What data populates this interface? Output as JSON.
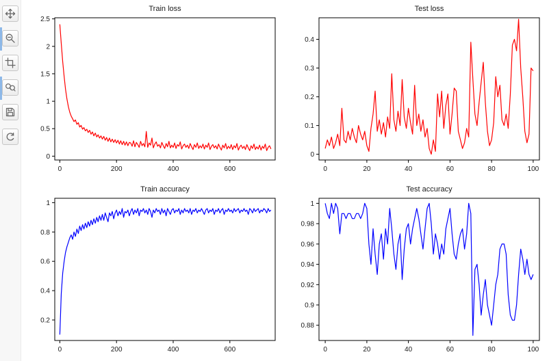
{
  "toolbar": {
    "accent_color": "#8db8e8",
    "buttons": [
      {
        "name": "pan",
        "icon": "pan-icon"
      },
      {
        "name": "zoom",
        "icon": "zoom-icon"
      },
      {
        "name": "zoom-to-rect",
        "icon": "crop-icon"
      },
      {
        "name": "inspect",
        "icon": "loupe-pair-icon"
      },
      {
        "name": "save",
        "icon": "save-icon"
      },
      {
        "name": "refresh",
        "icon": "refresh-icon"
      }
    ]
  },
  "chart_data": [
    {
      "type": "line",
      "title": "Train loss",
      "color": "#ff0000",
      "legend": "off",
      "grid": "off",
      "x0": 0,
      "dx": 5,
      "xlim": [
        -18,
        760
      ],
      "ylim": [
        -0.07,
        2.52
      ],
      "xticks": [
        0,
        200,
        400,
        600
      ],
      "xtick_labels": [
        "0",
        "200",
        "400",
        "600"
      ],
      "yticks": [
        0,
        0.5,
        1,
        1.5,
        2,
        2.5
      ],
      "ytick_labels": [
        "0",
        "0.5",
        "1",
        "1.5",
        "2",
        "2.5"
      ],
      "values": [
        2.4,
        2.05,
        1.72,
        1.45,
        1.22,
        1.04,
        0.9,
        0.8,
        0.73,
        0.68,
        0.63,
        0.66,
        0.58,
        0.61,
        0.53,
        0.56,
        0.49,
        0.52,
        0.46,
        0.49,
        0.43,
        0.47,
        0.4,
        0.44,
        0.37,
        0.42,
        0.35,
        0.39,
        0.33,
        0.37,
        0.31,
        0.36,
        0.29,
        0.34,
        0.27,
        0.33,
        0.26,
        0.31,
        0.25,
        0.3,
        0.24,
        0.29,
        0.22,
        0.28,
        0.21,
        0.27,
        0.2,
        0.26,
        0.19,
        0.25,
        0.24,
        0.18,
        0.28,
        0.17,
        0.25,
        0.21,
        0.16,
        0.27,
        0.19,
        0.23,
        0.17,
        0.45,
        0.16,
        0.24,
        0.2,
        0.33,
        0.15,
        0.22,
        0.26,
        0.18,
        0.21,
        0.15,
        0.25,
        0.19,
        0.14,
        0.23,
        0.17,
        0.27,
        0.15,
        0.2,
        0.16,
        0.24,
        0.14,
        0.21,
        0.18,
        0.26,
        0.13,
        0.19,
        0.22,
        0.16,
        0.2,
        0.14,
        0.23,
        0.17,
        0.12,
        0.21,
        0.16,
        0.24,
        0.14,
        0.19,
        0.15,
        0.22,
        0.13,
        0.2,
        0.16,
        0.24,
        0.12,
        0.18,
        0.21,
        0.15,
        0.19,
        0.13,
        0.22,
        0.16,
        0.11,
        0.2,
        0.15,
        0.23,
        0.13,
        0.18,
        0.14,
        0.21,
        0.12,
        0.19,
        0.15,
        0.23,
        0.11,
        0.17,
        0.2,
        0.14,
        0.18,
        0.12,
        0.21,
        0.15,
        0.1,
        0.19,
        0.14,
        0.22,
        0.12,
        0.17,
        0.13,
        0.2,
        0.11,
        0.18,
        0.14,
        0.22,
        0.1,
        0.16,
        0.19,
        0.13
      ]
    },
    {
      "type": "line",
      "title": "Test loss",
      "color": "#ff0000",
      "legend": "off",
      "grid": "off",
      "x0": 0,
      "dx": 1,
      "xlim": [
        -3,
        103
      ],
      "ylim": [
        -0.02,
        0.475
      ],
      "xticks": [
        0,
        20,
        40,
        60,
        80,
        100
      ],
      "xtick_labels": [
        "0",
        "20",
        "40",
        "60",
        "80",
        "100"
      ],
      "yticks": [
        0,
        0.1,
        0.2,
        0.3,
        0.4
      ],
      "ytick_labels": [
        "0",
        "0.1",
        "0.2",
        "0.3",
        "0.4"
      ],
      "values": [
        0.02,
        0.05,
        0.03,
        0.06,
        0.02,
        0.04,
        0.07,
        0.03,
        0.16,
        0.05,
        0.04,
        0.08,
        0.05,
        0.09,
        0.06,
        0.04,
        0.1,
        0.07,
        0.05,
        0.08,
        0.03,
        0.01,
        0.09,
        0.14,
        0.22,
        0.08,
        0.12,
        0.07,
        0.11,
        0.06,
        0.13,
        0.09,
        0.28,
        0.12,
        0.08,
        0.15,
        0.1,
        0.26,
        0.13,
        0.09,
        0.16,
        0.11,
        0.07,
        0.24,
        0.1,
        0.14,
        0.08,
        0.12,
        0.06,
        0.09,
        0.02,
        0.0,
        0.05,
        0.01,
        0.21,
        0.13,
        0.22,
        0.09,
        0.17,
        0.21,
        0.07,
        0.14,
        0.23,
        0.22,
        0.08,
        0.05,
        0.02,
        0.04,
        0.09,
        0.06,
        0.39,
        0.26,
        0.14,
        0.1,
        0.18,
        0.25,
        0.32,
        0.18,
        0.08,
        0.03,
        0.05,
        0.11,
        0.27,
        0.2,
        0.24,
        0.12,
        0.1,
        0.14,
        0.09,
        0.21,
        0.38,
        0.4,
        0.36,
        0.47,
        0.3,
        0.2,
        0.08,
        0.04,
        0.07,
        0.3,
        0.29
      ]
    },
    {
      "type": "line",
      "title": "Train accuracy",
      "color": "#0000ff",
      "legend": "off",
      "grid": "off",
      "x0": 0,
      "dx": 5,
      "xlim": [
        -18,
        760
      ],
      "ylim": [
        0.06,
        1.03
      ],
      "xticks": [
        0,
        200,
        400,
        600
      ],
      "xtick_labels": [
        "0",
        "200",
        "400",
        "600"
      ],
      "yticks": [
        0.2,
        0.4,
        0.6,
        0.8,
        1
      ],
      "ytick_labels": [
        "0.2",
        "0.4",
        "0.6",
        "0.8",
        "1"
      ],
      "values": [
        0.1,
        0.38,
        0.52,
        0.6,
        0.66,
        0.7,
        0.73,
        0.76,
        0.78,
        0.75,
        0.8,
        0.77,
        0.82,
        0.79,
        0.84,
        0.81,
        0.85,
        0.82,
        0.86,
        0.83,
        0.87,
        0.84,
        0.88,
        0.85,
        0.89,
        0.86,
        0.9,
        0.87,
        0.91,
        0.88,
        0.92,
        0.88,
        0.93,
        0.9,
        0.87,
        0.93,
        0.91,
        0.94,
        0.89,
        0.93,
        0.95,
        0.91,
        0.94,
        0.92,
        0.96,
        0.9,
        0.94,
        0.93,
        0.95,
        0.91,
        0.94,
        0.96,
        0.92,
        0.95,
        0.93,
        0.96,
        0.91,
        0.95,
        0.94,
        0.96,
        0.93,
        0.95,
        0.92,
        0.96,
        0.94,
        0.9,
        0.95,
        0.93,
        0.96,
        0.94,
        0.95,
        0.92,
        0.96,
        0.93,
        0.95,
        0.91,
        0.96,
        0.94,
        0.92,
        0.95,
        0.96,
        0.93,
        0.95,
        0.94,
        0.96,
        0.92,
        0.95,
        0.93,
        0.96,
        0.94,
        0.95,
        0.93,
        0.96,
        0.92,
        0.95,
        0.94,
        0.96,
        0.93,
        0.95,
        0.94,
        0.96,
        0.94,
        0.92,
        0.95,
        0.96,
        0.93,
        0.95,
        0.94,
        0.96,
        0.92,
        0.95,
        0.94,
        0.96,
        0.93,
        0.95,
        0.96,
        0.92,
        0.95,
        0.94,
        0.96,
        0.94,
        0.95,
        0.93,
        0.96,
        0.94,
        0.95,
        0.96,
        0.93,
        0.95,
        0.94,
        0.96,
        0.94,
        0.95,
        0.92,
        0.96,
        0.95,
        0.93,
        0.96,
        0.94,
        0.95,
        0.96,
        0.93,
        0.95,
        0.94,
        0.96,
        0.95,
        0.93,
        0.96,
        0.94,
        0.95
      ]
    },
    {
      "type": "line",
      "title": "Test accuracy",
      "color": "#0000ff",
      "legend": "off",
      "grid": "off",
      "x0": 0,
      "dx": 1,
      "xlim": [
        -3,
        103
      ],
      "ylim": [
        0.865,
        1.005
      ],
      "xticks": [
        0,
        20,
        40,
        60,
        80,
        100
      ],
      "xtick_labels": [
        "0",
        "20",
        "40",
        "60",
        "80",
        "100"
      ],
      "yticks": [
        0.88,
        0.9,
        0.92,
        0.94,
        0.96,
        0.98,
        1
      ],
      "ytick_labels": [
        "0.88",
        "0.9",
        "0.92",
        "0.94",
        "0.96",
        "0.98",
        "1"
      ],
      "values": [
        1.0,
        0.99,
        0.985,
        1.0,
        0.99,
        1.0,
        0.995,
        0.97,
        0.99,
        0.99,
        0.985,
        0.99,
        0.99,
        0.985,
        0.985,
        0.99,
        0.99,
        0.985,
        0.99,
        1.0,
        0.995,
        0.96,
        0.94,
        0.975,
        0.95,
        0.93,
        0.96,
        0.97,
        0.945,
        0.975,
        0.96,
        0.995,
        0.975,
        0.95,
        0.935,
        0.96,
        0.97,
        0.925,
        0.955,
        0.975,
        0.98,
        0.96,
        0.975,
        0.985,
        0.995,
        0.985,
        0.97,
        0.955,
        0.975,
        0.995,
        1.0,
        0.98,
        0.95,
        0.97,
        0.96,
        0.945,
        0.96,
        0.95,
        0.975,
        0.985,
        0.995,
        0.97,
        0.95,
        0.945,
        0.96,
        0.97,
        0.975,
        0.955,
        0.97,
        1.0,
        0.99,
        0.87,
        0.935,
        0.94,
        0.92,
        0.89,
        0.91,
        0.925,
        0.9,
        0.89,
        0.88,
        0.9,
        0.92,
        0.93,
        0.955,
        0.96,
        0.96,
        0.95,
        0.91,
        0.89,
        0.885,
        0.885,
        0.9,
        0.93,
        0.955,
        0.945,
        0.93,
        0.945,
        0.93,
        0.925,
        0.93
      ]
    }
  ]
}
